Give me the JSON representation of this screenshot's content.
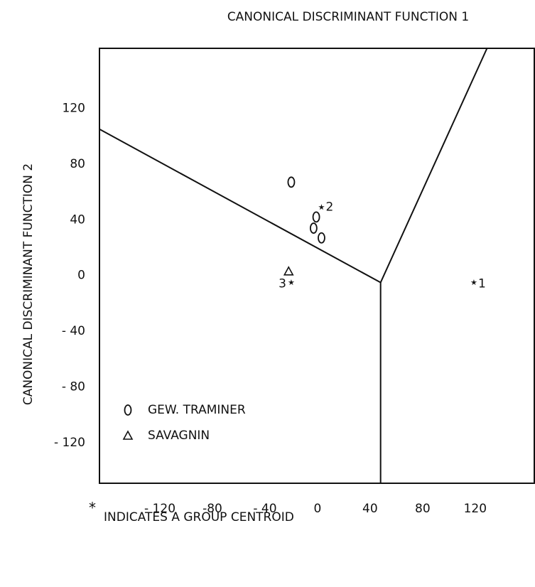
{
  "chart_data": {
    "type": "scatter",
    "title": "CANONICAL DISCRIMINANT FUNCTION 1",
    "y_label": "CANONICAL DISCRIMINANT FUNCTION 2",
    "footnote_symbol": "*",
    "footnote": "INDICATES A GROUP CENTROID",
    "xlim": [
      -166,
      165
    ],
    "ylim": [
      -149,
      163
    ],
    "xticks": [
      {
        "value": -120,
        "label": "- 120"
      },
      -80,
      {
        "value": -40,
        "label": "- 40"
      },
      0,
      40,
      80,
      120
    ],
    "yticks": [
      120,
      80,
      40,
      0,
      {
        "value": -40,
        "label": "- 40"
      },
      {
        "value": -80,
        "label": "- 80"
      },
      {
        "value": -120,
        "label": "- 120"
      }
    ],
    "legend": "lower left",
    "series": [
      {
        "name": "GEW. TRAMINER",
        "marker": "circle",
        "color": "#111111",
        "x": [
          -20,
          -1,
          -3,
          3
        ],
        "values": [
          67,
          42,
          34,
          27
        ]
      },
      {
        "name": "SAVAGNIN",
        "marker": "triangle",
        "color": "#111111",
        "x": [
          -22
        ],
        "values": [
          3
        ]
      }
    ],
    "centroids": {
      "marker": "star",
      "color": "#111111",
      "labels": [
        "1",
        "2",
        "3"
      ],
      "x": [
        119,
        3,
        -20
      ],
      "values": [
        -5,
        49,
        -5
      ]
    },
    "boundaries": [
      {
        "x": [
          -166,
          48
        ],
        "values": [
          105,
          -5
        ]
      },
      {
        "x": [
          48,
          129
        ],
        "values": [
          -5,
          163
        ]
      },
      {
        "x": [
          48,
          48
        ],
        "values": [
          -5,
          -149
        ]
      }
    ]
  }
}
